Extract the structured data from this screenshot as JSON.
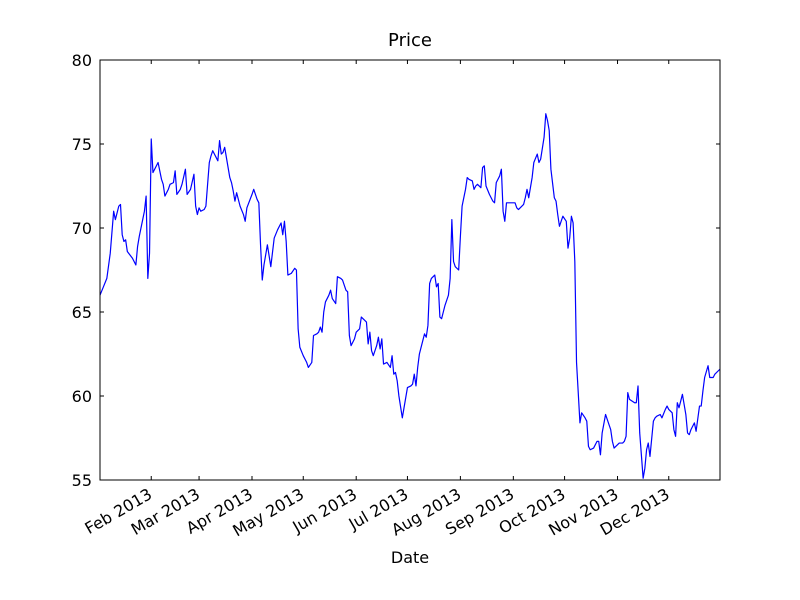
{
  "chart_data": {
    "type": "line",
    "title": "Price",
    "x_label": "Date",
    "color": "#0000ff",
    "x": [
      2,
      4,
      6,
      8,
      10,
      11,
      13,
      14,
      15,
      16,
      17,
      18,
      21,
      23,
      24,
      25,
      28,
      29,
      30,
      31,
      32,
      33,
      35,
      36,
      38,
      39,
      40,
      42,
      43,
      45,
      46,
      47,
      49,
      50,
      52,
      53,
      55,
      57,
      58,
      59,
      60,
      61,
      63,
      64,
      66,
      67,
      68,
      70,
      71,
      72,
      73,
      74,
      75,
      78,
      79,
      80,
      81,
      82,
      84,
      86,
      87,
      88,
      91,
      92,
      94,
      95,
      96,
      97,
      98,
      100,
      102,
      104,
      106,
      108,
      109,
      110,
      111,
      112,
      114,
      116,
      117,
      118,
      119,
      121,
      123,
      124,
      126,
      127,
      129,
      130,
      131,
      132,
      133,
      134,
      136,
      137,
      138,
      140,
      141,
      143,
      144,
      146,
      147,
      148,
      149,
      151,
      152,
      154,
      155,
      156,
      158,
      159,
      160,
      161,
      162,
      164,
      165,
      166,
      167,
      168,
      170,
      172,
      173,
      174,
      175,
      176,
      177,
      179,
      180,
      182,
      184,
      185,
      186,
      187,
      188,
      189,
      191,
      192,
      193,
      194,
      195,
      196,
      198,
      199,
      200,
      201,
      202,
      204,
      206,
      207,
      208,
      209,
      210,
      212,
      213,
      214,
      216,
      217,
      218,
      220,
      221,
      222,
      223,
      225,
      226,
      227,
      228,
      230,
      232,
      233,
      234,
      236,
      237,
      238,
      239,
      240,
      243,
      245,
      246,
      247,
      250,
      251,
      252,
      253,
      255,
      256,
      258,
      259,
      260,
      262,
      263,
      264,
      265,
      266,
      268,
      269,
      270,
      271,
      273,
      275,
      276,
      277,
      278,
      279,
      280,
      281,
      283,
      284,
      286,
      287,
      288,
      289,
      291,
      293,
      294,
      295,
      296,
      298,
      300,
      301,
      302,
      303,
      306,
      308,
      309,
      310,
      311,
      312,
      315,
      316,
      317,
      318,
      320,
      321,
      322,
      323,
      324,
      326,
      327,
      328,
      330,
      331,
      333,
      334,
      335,
      337,
      338,
      339,
      340,
      341,
      342,
      343,
      345,
      346,
      347,
      348,
      349,
      350,
      351,
      353,
      354,
      355,
      356,
      358,
      359,
      361,
      362,
      365
    ],
    "values": [
      66.0,
      66.5,
      67.0,
      68.5,
      71.0,
      70.5,
      71.3,
      71.4,
      69.6,
      69.2,
      69.3,
      68.6,
      68.2,
      67.8,
      68.9,
      69.5,
      71.0,
      71.9,
      67.0,
      68.5,
      75.3,
      73.3,
      73.7,
      73.9,
      72.9,
      72.6,
      71.9,
      72.3,
      72.6,
      72.7,
      73.4,
      72.0,
      72.3,
      72.6,
      73.5,
      72.0,
      72.3,
      73.2,
      71.3,
      70.8,
      71.2,
      71.0,
      71.1,
      71.3,
      73.9,
      74.3,
      74.6,
      74.2,
      74.0,
      75.2,
      74.4,
      74.5,
      74.8,
      73.0,
      72.7,
      72.2,
      71.6,
      72.1,
      71.3,
      70.8,
      70.4,
      71.2,
      72.0,
      72.3,
      71.7,
      71.5,
      69.0,
      66.9,
      67.8,
      69.0,
      67.7,
      69.4,
      69.9,
      70.3,
      69.6,
      70.4,
      69.2,
      67.2,
      67.3,
      67.6,
      67.5,
      64.0,
      62.9,
      62.4,
      62.0,
      61.7,
      62.0,
      63.6,
      63.7,
      63.8,
      64.1,
      63.8,
      65.0,
      65.6,
      66.0,
      66.3,
      65.8,
      65.5,
      67.1,
      67.0,
      66.9,
      66.3,
      66.2,
      63.6,
      63.0,
      63.4,
      63.8,
      64.0,
      64.7,
      64.6,
      64.4,
      63.1,
      63.8,
      62.7,
      62.4,
      63.0,
      63.5,
      62.8,
      63.4,
      61.9,
      62.0,
      61.7,
      62.4,
      61.3,
      61.4,
      60.9,
      60.0,
      58.7,
      59.3,
      60.5,
      60.6,
      60.7,
      61.3,
      60.6,
      61.7,
      62.5,
      63.3,
      63.7,
      63.5,
      64.2,
      66.7,
      67.0,
      67.2,
      66.5,
      66.7,
      64.7,
      64.6,
      65.4,
      66.0,
      67.0,
      70.5,
      68.0,
      67.7,
      67.5,
      69.5,
      71.3,
      72.3,
      73.0,
      72.9,
      72.8,
      72.3,
      72.5,
      72.6,
      72.4,
      73.6,
      73.7,
      72.5,
      72.0,
      71.6,
      71.5,
      72.7,
      73.1,
      73.5,
      71.0,
      70.4,
      71.5,
      71.5,
      71.5,
      71.2,
      71.1,
      71.4,
      71.8,
      72.3,
      71.8,
      73.0,
      73.9,
      74.4,
      73.9,
      74.1,
      75.4,
      76.8,
      76.4,
      75.8,
      73.5,
      71.8,
      71.6,
      70.8,
      70.1,
      70.7,
      70.4,
      68.8,
      69.4,
      70.7,
      70.3,
      68.0,
      62.0,
      58.4,
      59.0,
      58.7,
      58.5,
      57.0,
      56.8,
      56.9,
      57.3,
      57.3,
      56.5,
      57.8,
      58.9,
      58.3,
      58.0,
      57.3,
      56.9,
      57.2,
      57.2,
      57.3,
      57.6,
      60.2,
      59.8,
      59.6,
      59.6,
      60.6,
      57.8,
      55.1,
      55.7,
      56.8,
      57.2,
      56.4,
      58.5,
      58.7,
      58.8,
      58.9,
      58.7,
      59.2,
      59.4,
      59.2,
      59.0,
      58.0,
      57.6,
      59.6,
      59.3,
      59.7,
      60.1,
      58.9,
      57.8,
      57.7,
      58.0,
      58.2,
      58.4,
      57.9,
      59.4,
      59.4,
      60.3,
      61.1,
      61.8,
      61.1,
      61.1,
      61.3,
      61.6
    ],
    "xlim": [
      2,
      365
    ],
    "xticks": [
      {
        "value": 32,
        "label": "Feb 2013"
      },
      {
        "value": 60,
        "label": "Mar 2013"
      },
      {
        "value": 91,
        "label": "Apr 2013"
      },
      {
        "value": 121,
        "label": "May 2013"
      },
      {
        "value": 152,
        "label": "Jun 2013"
      },
      {
        "value": 182,
        "label": "Jul 2013"
      },
      {
        "value": 213,
        "label": "Aug 2013"
      },
      {
        "value": 244,
        "label": "Sep 2013"
      },
      {
        "value": 274,
        "label": "Oct 2013"
      },
      {
        "value": 305,
        "label": "Nov 2013"
      },
      {
        "value": 335,
        "label": "Dec 2013"
      }
    ],
    "ylim": [
      55,
      80
    ],
    "yticks": [
      55,
      60,
      65,
      70,
      75,
      80
    ],
    "grid": false
  }
}
